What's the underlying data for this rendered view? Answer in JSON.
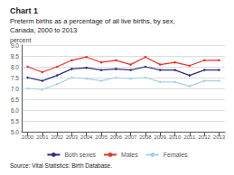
{
  "chart_data": {
    "type": "line",
    "title": "Chart 1",
    "subtitle": [
      "Preterm births as a percentage of all live births, by sex,",
      "Canada, 2000 to 2013"
    ],
    "ylabel": "percent",
    "source": "Source: Vital Statistics: Birth Database.",
    "x": [
      2000,
      2001,
      2002,
      2003,
      2004,
      2005,
      2006,
      2007,
      2008,
      2009,
      2010,
      2011,
      2012,
      2013
    ],
    "series": [
      {
        "name": "Both sexes",
        "color": "#2e2d82",
        "marker": "o",
        "values": [
          7.5,
          7.35,
          7.6,
          7.9,
          7.95,
          7.85,
          7.9,
          7.85,
          8.0,
          7.85,
          7.85,
          7.6,
          7.85,
          7.85
        ]
      },
      {
        "name": "Males",
        "color": "#e8312a",
        "marker": "o",
        "values": [
          8.0,
          7.75,
          8.0,
          8.3,
          8.45,
          8.2,
          8.3,
          8.1,
          8.45,
          8.1,
          8.2,
          8.05,
          8.3,
          8.3
        ]
      },
      {
        "name": "Females",
        "color": "#a8d0e6",
        "marker": "o",
        "values": [
          7.0,
          6.95,
          7.2,
          7.5,
          7.45,
          7.35,
          7.5,
          7.45,
          7.5,
          7.3,
          7.3,
          7.1,
          7.35,
          7.35
        ]
      }
    ],
    "xlim": [
      1999.6,
      2013.4
    ],
    "xticks": [
      2000,
      2001,
      2002,
      2003,
      2004,
      2005,
      2006,
      2007,
      2008,
      2009,
      2010,
      2011,
      2012,
      2013
    ],
    "ylim": [
      5.0,
      9.0
    ],
    "yticks": [
      {
        "value": 5.0,
        "label": "5.0"
      },
      {
        "value": 5.5,
        "label": "5.5"
      },
      {
        "value": 6.0,
        "label": "6.0"
      },
      {
        "value": 6.5,
        "label": "6.5"
      },
      {
        "value": 7.0,
        "label": "7.0"
      },
      {
        "value": 7.5,
        "label": "7.5"
      },
      {
        "value": 8.0,
        "label": "8.0"
      },
      {
        "value": 8.5,
        "label": "8.5"
      },
      {
        "value": 9.0,
        "label": "9.0"
      }
    ],
    "grid": true,
    "legend": "bottom"
  }
}
